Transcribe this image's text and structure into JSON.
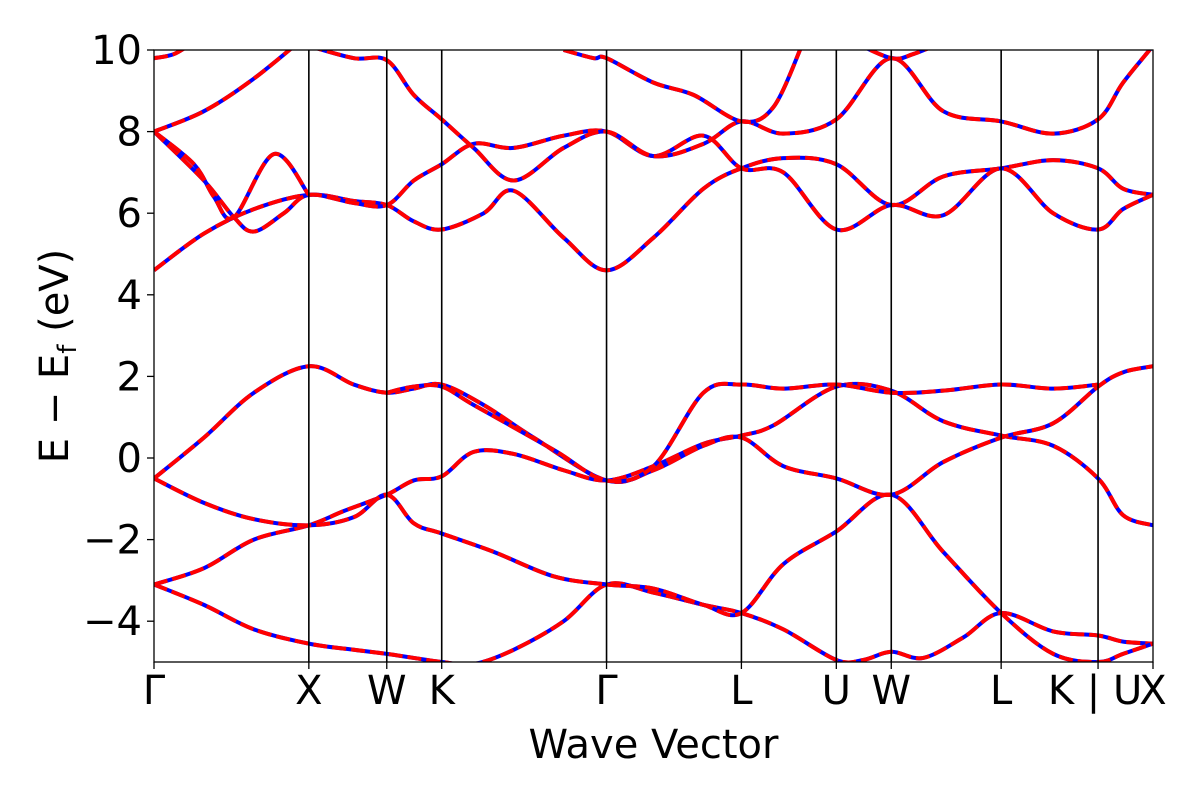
{
  "chart_data": {
    "type": "line",
    "xlabel": "Wave Vector",
    "ylabel_parts": {
      "main": "E − E",
      "sub": "f",
      "unit": " (eV)"
    },
    "ylim": [
      -5,
      10
    ],
    "yticks": [
      {
        "value": 10,
        "label": "10"
      },
      {
        "value": 8,
        "label": "8"
      },
      {
        "value": 6,
        "label": "6"
      },
      {
        "value": 4,
        "label": "4"
      },
      {
        "value": 2,
        "label": "2"
      },
      {
        "value": 0,
        "label": "0"
      },
      {
        "value": -2,
        "label": "−2"
      },
      {
        "value": -4,
        "label": "−4"
      }
    ],
    "xlim": [
      0,
      1
    ],
    "kpoints": [
      {
        "label": "Γ",
        "x": 0.0
      },
      {
        "label": "X",
        "x": 0.155
      },
      {
        "label": "W",
        "x": 0.233
      },
      {
        "label": "K",
        "x": 0.288
      },
      {
        "label": "Γ",
        "x": 0.453
      },
      {
        "label": "L",
        "x": 0.588
      },
      {
        "label": "U",
        "x": 0.683
      },
      {
        "label": "W",
        "x": 0.738
      },
      {
        "label": "L",
        "x": 0.848
      },
      {
        "label": "K | U",
        "x": 0.945
      },
      {
        "label": "X",
        "x": 1.0
      }
    ],
    "colors": {
      "series_a": "#0000ff",
      "series_b": "#ff0000",
      "kline": "#000000"
    },
    "series": [
      {
        "band": "b1",
        "points": [
          [
            0,
            -3.1
          ],
          [
            0.05,
            -3.6
          ],
          [
            0.1,
            -4.2
          ],
          [
            0.155,
            -4.55
          ],
          [
            0.2,
            -4.7
          ],
          [
            0.233,
            -4.8
          ],
          [
            0.26,
            -4.9
          ],
          [
            0.288,
            -5.0
          ],
          [
            0.32,
            -5.05
          ],
          [
            0.36,
            -4.7
          ],
          [
            0.41,
            -4.0
          ],
          [
            0.453,
            -3.1
          ],
          [
            0.5,
            -3.3
          ],
          [
            0.55,
            -3.6
          ],
          [
            0.588,
            -3.8
          ],
          [
            0.63,
            -4.2
          ],
          [
            0.683,
            -4.95
          ],
          [
            0.71,
            -4.95
          ],
          [
            0.738,
            -4.75
          ],
          [
            0.77,
            -4.9
          ],
          [
            0.81,
            -4.4
          ],
          [
            0.848,
            -3.8
          ],
          [
            0.9,
            -4.25
          ],
          [
            0.945,
            -4.35
          ],
          [
            0.97,
            -4.5
          ],
          [
            1,
            -4.55
          ]
        ]
      },
      {
        "band": "b2",
        "points": [
          [
            0,
            -3.1
          ],
          [
            0.05,
            -2.7
          ],
          [
            0.1,
            -2.0
          ],
          [
            0.155,
            -1.65
          ],
          [
            0.19,
            -1.3
          ],
          [
            0.233,
            -0.9
          ],
          [
            0.26,
            -0.55
          ],
          [
            0.288,
            -0.45
          ],
          [
            0.32,
            0.15
          ],
          [
            0.36,
            0.1
          ],
          [
            0.41,
            -0.3
          ],
          [
            0.453,
            -0.55
          ],
          [
            0.5,
            -0.2
          ],
          [
            0.55,
            0.35
          ],
          [
            0.588,
            0.55
          ],
          [
            0.62,
            0.8
          ],
          [
            0.683,
            1.75
          ],
          [
            0.738,
            1.65
          ],
          [
            0.79,
            0.9
          ],
          [
            0.848,
            0.55
          ],
          [
            0.9,
            0.3
          ],
          [
            0.945,
            -0.5
          ],
          [
            0.97,
            -1.4
          ],
          [
            1,
            -1.65
          ]
        ]
      },
      {
        "band": "b3",
        "points": [
          [
            0,
            -0.5
          ],
          [
            0.05,
            -1.1
          ],
          [
            0.1,
            -1.5
          ],
          [
            0.155,
            -1.65
          ],
          [
            0.2,
            -1.45
          ],
          [
            0.233,
            -0.9
          ],
          [
            0.26,
            -1.6
          ],
          [
            0.288,
            -1.85
          ],
          [
            0.34,
            -2.3
          ],
          [
            0.4,
            -2.9
          ],
          [
            0.453,
            -3.1
          ],
          [
            0.5,
            -3.2
          ],
          [
            0.55,
            -3.6
          ],
          [
            0.588,
            -3.8
          ],
          [
            0.63,
            -2.6
          ],
          [
            0.683,
            -1.8
          ],
          [
            0.738,
            -0.9
          ],
          [
            0.79,
            -2.3
          ],
          [
            0.848,
            -3.8
          ],
          [
            0.9,
            -4.8
          ],
          [
            0.945,
            -5.0
          ],
          [
            0.97,
            -4.8
          ],
          [
            1,
            -4.55
          ]
        ]
      },
      {
        "band": "b4",
        "points": [
          [
            0,
            -0.5
          ],
          [
            0.05,
            0.5
          ],
          [
            0.1,
            1.6
          ],
          [
            0.155,
            2.25
          ],
          [
            0.2,
            1.8
          ],
          [
            0.233,
            1.6
          ],
          [
            0.26,
            1.7
          ],
          [
            0.288,
            1.8
          ],
          [
            0.33,
            1.3
          ],
          [
            0.38,
            0.5
          ],
          [
            0.453,
            -0.55
          ],
          [
            0.5,
            -0.3
          ],
          [
            0.55,
            0.3
          ],
          [
            0.588,
            0.5
          ],
          [
            0.63,
            -0.2
          ],
          [
            0.683,
            -0.5
          ],
          [
            0.738,
            -0.9
          ],
          [
            0.79,
            -0.1
          ],
          [
            0.848,
            0.5
          ],
          [
            0.9,
            0.85
          ],
          [
            0.945,
            1.75
          ],
          [
            0.97,
            2.1
          ],
          [
            1,
            2.25
          ]
        ]
      },
      {
        "band": "b5",
        "points": [
          [
            0.233,
            1.6
          ],
          [
            0.26,
            1.75
          ],
          [
            0.288,
            1.75
          ],
          [
            0.32,
            1.3
          ],
          [
            0.4,
            0.2
          ],
          [
            0.453,
            -0.55
          ],
          [
            0.5,
            -0.2
          ],
          [
            0.55,
            1.6
          ],
          [
            0.588,
            1.8
          ],
          [
            0.63,
            1.7
          ],
          [
            0.683,
            1.8
          ],
          [
            0.738,
            1.6
          ],
          [
            0.79,
            1.65
          ],
          [
            0.848,
            1.8
          ],
          [
            0.9,
            1.7
          ],
          [
            0.945,
            1.8
          ]
        ]
      },
      {
        "band": "b6",
        "points": [
          [
            0,
            4.6
          ],
          [
            0.05,
            5.5
          ],
          [
            0.1,
            6.1
          ],
          [
            0.155,
            6.45
          ],
          [
            0.2,
            6.3
          ],
          [
            0.233,
            6.2
          ],
          [
            0.26,
            5.8
          ],
          [
            0.288,
            5.6
          ],
          [
            0.33,
            6.0
          ],
          [
            0.36,
            6.55
          ],
          [
            0.41,
            5.4
          ],
          [
            0.453,
            4.6
          ],
          [
            0.5,
            5.4
          ],
          [
            0.55,
            6.6
          ],
          [
            0.588,
            7.1
          ],
          [
            0.63,
            7.35
          ],
          [
            0.683,
            7.2
          ],
          [
            0.738,
            6.2
          ],
          [
            0.79,
            6.9
          ],
          [
            0.848,
            7.1
          ],
          [
            0.9,
            7.3
          ],
          [
            0.945,
            7.1
          ],
          [
            0.97,
            6.6
          ],
          [
            1,
            6.45
          ]
        ]
      },
      {
        "band": "b7",
        "points": [
          [
            0,
            8.0
          ],
          [
            0.05,
            6.8
          ],
          [
            0.08,
            5.9
          ],
          [
            0.1,
            5.55
          ],
          [
            0.13,
            6.0
          ],
          [
            0.155,
            6.45
          ],
          [
            0.2,
            6.25
          ],
          [
            0.233,
            6.2
          ],
          [
            0.26,
            6.8
          ],
          [
            0.288,
            7.2
          ],
          [
            0.32,
            7.7
          ],
          [
            0.36,
            7.6
          ],
          [
            0.41,
            7.9
          ],
          [
            0.453,
            8.0
          ],
          [
            0.5,
            7.4
          ],
          [
            0.55,
            7.9
          ],
          [
            0.588,
            7.1
          ],
          [
            0.63,
            7.0
          ],
          [
            0.683,
            5.6
          ],
          [
            0.738,
            6.2
          ],
          [
            0.79,
            5.95
          ],
          [
            0.848,
            7.1
          ],
          [
            0.9,
            6.0
          ],
          [
            0.945,
            5.6
          ],
          [
            0.97,
            6.1
          ],
          [
            1,
            6.45
          ]
        ]
      },
      {
        "band": "b8",
        "points": [
          [
            0,
            8.0
          ],
          [
            0.04,
            7.2
          ],
          [
            0.06,
            6.4
          ],
          [
            0.08,
            5.9
          ],
          [
            0.12,
            7.45
          ],
          [
            0.155,
            6.45
          ]
        ]
      },
      {
        "band": "b9",
        "points": [
          [
            0,
            8.0
          ],
          [
            0.05,
            8.5
          ],
          [
            0.1,
            9.3
          ],
          [
            0.155,
            10.4
          ]
        ]
      },
      {
        "band": "b10",
        "points": [
          [
            0,
            9.8
          ],
          [
            0.02,
            9.9
          ],
          [
            0.04,
            10.2
          ]
        ]
      },
      {
        "band": "b11",
        "points": [
          [
            0.155,
            10.1
          ],
          [
            0.2,
            9.8
          ],
          [
            0.233,
            9.75
          ],
          [
            0.26,
            8.9
          ],
          [
            0.288,
            8.3
          ],
          [
            0.32,
            7.6
          ],
          [
            0.36,
            6.8
          ],
          [
            0.41,
            7.6
          ],
          [
            0.453,
            8.0
          ],
          [
            0.5,
            7.4
          ],
          [
            0.55,
            7.7
          ],
          [
            0.588,
            8.25
          ],
          [
            0.63,
            7.95
          ],
          [
            0.683,
            8.3
          ],
          [
            0.738,
            9.8
          ],
          [
            0.79,
            8.5
          ],
          [
            0.848,
            8.25
          ],
          [
            0.9,
            7.95
          ],
          [
            0.945,
            8.3
          ],
          [
            0.97,
            9.2
          ],
          [
            1,
            10.1
          ]
        ]
      },
      {
        "band": "b12",
        "points": [
          [
            0.41,
            10.0
          ],
          [
            0.44,
            9.8
          ],
          [
            0.453,
            9.8
          ],
          [
            0.5,
            9.2
          ],
          [
            0.54,
            8.9
          ],
          [
            0.588,
            8.25
          ],
          [
            0.62,
            8.6
          ],
          [
            0.65,
            10.2
          ]
        ]
      },
      {
        "band": "b13",
        "points": [
          [
            0.7,
            10.2
          ],
          [
            0.738,
            9.8
          ],
          [
            0.76,
            9.9
          ],
          [
            0.79,
            10.2
          ]
        ]
      }
    ]
  }
}
